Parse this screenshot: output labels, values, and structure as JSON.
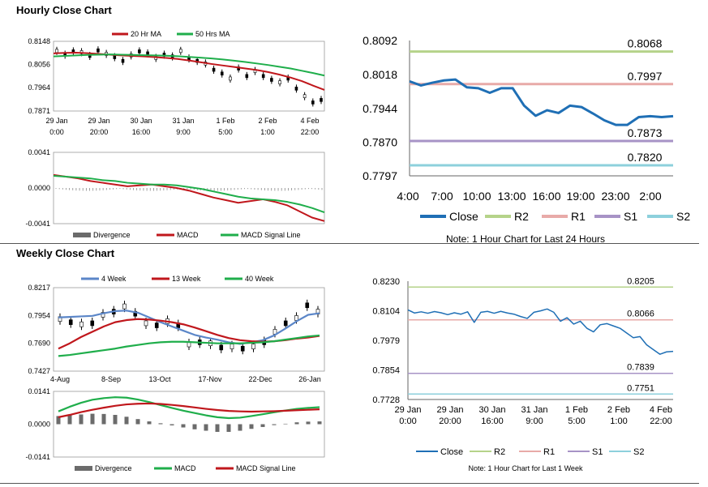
{
  "sections": {
    "hourly_title": "Hourly Close Chart",
    "weekly_title": "Weekly Close Chart"
  },
  "colors": {
    "close": "#1f6fb5",
    "r2": "#b5d38a",
    "r1": "#e8aaa8",
    "s1": "#a793c6",
    "s2": "#8dd0dc",
    "ma_red": "#c0171c",
    "ma_green": "#1fae4b",
    "ma_blue": "#5b86c8",
    "candle": "#000000",
    "divergence": "#6b6b6b"
  },
  "chart_data": [
    {
      "id": "hourly_price",
      "type": "line",
      "y_ticks": [
        "0.8148",
        "0.8056",
        "0.7964",
        "0.7871"
      ],
      "ylim": [
        0.7871,
        0.8148
      ],
      "x_ticks": [
        [
          "29 Jan",
          "0:00"
        ],
        [
          "29 Jan",
          "20:00"
        ],
        [
          "30 Jan",
          "16:00"
        ],
        [
          "31 Jan",
          "9:00"
        ],
        [
          "1 Feb",
          "5:00"
        ],
        [
          "2 Feb",
          "1:00"
        ],
        [
          "4 Feb",
          "22:00"
        ]
      ],
      "series": [
        {
          "name": "20 Hr MA",
          "color": "#c0171c",
          "values": [
            0.81,
            0.8102,
            0.8103,
            0.8101,
            0.8098,
            0.8095,
            0.8092,
            0.809,
            0.8088,
            0.8085,
            0.8082,
            0.8078,
            0.8072,
            0.8065,
            0.8058,
            0.8052,
            0.8046,
            0.804,
            0.8034,
            0.8026,
            0.8016,
            0.8004,
            0.799,
            0.7972,
            0.7955
          ]
        },
        {
          "name": "50 Hrs MA",
          "color": "#1fae4b",
          "values": [
            0.8088,
            0.809,
            0.8092,
            0.8094,
            0.8095,
            0.8096,
            0.8095,
            0.8094,
            0.8093,
            0.8092,
            0.8091,
            0.8089,
            0.8086,
            0.8083,
            0.808,
            0.8076,
            0.8071,
            0.8066,
            0.806,
            0.8054,
            0.8047,
            0.804,
            0.8031,
            0.8022,
            0.8012
          ]
        }
      ],
      "candles": [
        0.811,
        0.8095,
        0.8108,
        0.8105,
        0.809,
        0.8112,
        0.8098,
        0.8085,
        0.807,
        0.8092,
        0.8108,
        0.81,
        0.8082,
        0.8095,
        0.8088,
        0.811,
        0.808,
        0.807,
        0.806,
        0.8035,
        0.802,
        0.8,
        0.804,
        0.801,
        0.803,
        0.801,
        0.7995,
        0.7985,
        0.8,
        0.796,
        0.793,
        0.7905,
        0.7915
      ]
    },
    {
      "id": "hourly_macd",
      "type": "bar",
      "y_ticks": [
        "0.0041",
        "0.0000",
        "-0.0041"
      ],
      "ylim": [
        -0.0041,
        0.0041
      ],
      "series": [
        {
          "name": "Divergence",
          "color": "#6b6b6b"
        },
        {
          "name": "MACD",
          "color": "#c0171c",
          "values": [
            0.0015,
            0.0013,
            0.0011,
            0.0008,
            0.0006,
            0.0004,
            0.0002,
            0.0003,
            0.0004,
            0.0002,
            0.0,
            -0.0003,
            -0.0007,
            -0.0011,
            -0.0014,
            -0.0017,
            -0.0015,
            -0.0013,
            -0.0016,
            -0.002,
            -0.0027,
            -0.0034,
            -0.0038
          ]
        },
        {
          "name": "MACD Signal Line",
          "color": "#1fae4b",
          "values": [
            0.0014,
            0.0013,
            0.0012,
            0.0011,
            0.0009,
            0.0008,
            0.0006,
            0.0005,
            0.0004,
            0.0004,
            0.0003,
            0.0001,
            -0.0001,
            -0.0004,
            -0.0007,
            -0.001,
            -0.0012,
            -0.0013,
            -0.0014,
            -0.0016,
            -0.0019,
            -0.0023,
            -0.0028
          ]
        }
      ]
    },
    {
      "id": "hourly_24h",
      "type": "line",
      "y_ticks": [
        "0.8092",
        "0.8018",
        "0.7944",
        "0.7870",
        "0.7797"
      ],
      "ylim": [
        0.7797,
        0.8092
      ],
      "x_ticks": [
        "4:00",
        "7:00",
        "10:00",
        "13:00",
        "16:00",
        "19:00",
        "23:00",
        "2:00"
      ],
      "levels": [
        {
          "name": "R2",
          "value": 0.8068,
          "label": "0.8068",
          "color": "#b5d38a"
        },
        {
          "name": "R1",
          "value": 0.7997,
          "label": "0.7997",
          "color": "#e8aaa8"
        },
        {
          "name": "S1",
          "value": 0.7873,
          "label": "0.7873",
          "color": "#a793c6"
        },
        {
          "name": "S2",
          "value": 0.782,
          "label": "0.7820",
          "color": "#8dd0dc"
        }
      ],
      "series": [
        {
          "name": "Close",
          "color": "#1f6fb5",
          "values": [
            0.8003,
            0.7994,
            0.8,
            0.8005,
            0.8007,
            0.799,
            0.7988,
            0.7978,
            0.7988,
            0.7988,
            0.795,
            0.7928,
            0.794,
            0.7934,
            0.795,
            0.7947,
            0.7933,
            0.7918,
            0.7908,
            0.7908,
            0.7925,
            0.7927,
            0.7925,
            0.7927
          ]
        }
      ],
      "legend": [
        "Close",
        "R2",
        "R1",
        "S1",
        "S2"
      ],
      "note": "Note: 1 Hour Chart for Last 24 Hours"
    },
    {
      "id": "weekly_price",
      "type": "line",
      "y_ticks": [
        "0.8217",
        "0.7954",
        "0.7690",
        "0.7427"
      ],
      "ylim": [
        0.7427,
        0.8217
      ],
      "x_ticks": [
        "4-Aug",
        "8-Sep",
        "13-Oct",
        "17-Nov",
        "22-Dec",
        "26-Jan"
      ],
      "series": [
        {
          "name": "4 Week",
          "color": "#5b86c8",
          "values": [
            0.7935,
            0.794,
            0.7945,
            0.795,
            0.7975,
            0.7995,
            0.8,
            0.798,
            0.7935,
            0.789,
            0.785,
            0.781,
            0.777,
            0.7745,
            0.7725,
            0.77,
            0.7685,
            0.77,
            0.772,
            0.7765,
            0.783,
            0.79,
            0.796,
            0.7975
          ]
        },
        {
          "name": "13 Week",
          "color": "#c0171c",
          "values": [
            0.764,
            0.769,
            0.775,
            0.78,
            0.785,
            0.789,
            0.791,
            0.792,
            0.7915,
            0.7905,
            0.789,
            0.787,
            0.784,
            0.7805,
            0.777,
            0.774,
            0.772,
            0.771,
            0.7705,
            0.771,
            0.772,
            0.7735,
            0.7745,
            0.776
          ]
        },
        {
          "name": "40 Week",
          "color": "#1fae4b",
          "values": [
            0.757,
            0.758,
            0.7595,
            0.761,
            0.7625,
            0.764,
            0.766,
            0.7675,
            0.769,
            0.77,
            0.7705,
            0.7705,
            0.77,
            0.7695,
            0.769,
            0.769,
            0.769,
            0.7695,
            0.77,
            0.771,
            0.7725,
            0.774,
            0.7755,
            0.7765
          ]
        }
      ],
      "candles": [
        0.792,
        0.789,
        0.787,
        0.788,
        0.796,
        0.799,
        0.804,
        0.797,
        0.788,
        0.786,
        0.79,
        0.786,
        0.768,
        0.77,
        0.769,
        0.765,
        0.766,
        0.764,
        0.766,
        0.77,
        0.78,
        0.788,
        0.793,
        0.805,
        0.799
      ]
    },
    {
      "id": "weekly_macd",
      "type": "bar",
      "y_ticks": [
        "0.0141",
        "0.0000",
        "-0.0141"
      ],
      "ylim": [
        -0.0141,
        0.0141
      ],
      "series": [
        {
          "name": "Divergence",
          "color": "#6b6b6b",
          "values": [
            0.0035,
            0.004,
            0.0042,
            0.0045,
            0.0044,
            0.004,
            0.0032,
            0.0022,
            0.0012,
            0.0004,
            -0.0005,
            -0.0014,
            -0.0022,
            -0.0028,
            -0.0033,
            -0.0033,
            -0.0028,
            -0.002,
            -0.0012,
            -0.0004,
            0.0002,
            0.0008,
            0.0011,
            0.0012
          ]
        },
        {
          "name": "MACD",
          "color": "#1fae4b",
          "values": [
            0.0055,
            0.0075,
            0.0092,
            0.0105,
            0.0112,
            0.0116,
            0.0114,
            0.0106,
            0.0095,
            0.0082,
            0.007,
            0.0058,
            0.0048,
            0.0038,
            0.003,
            0.0026,
            0.0028,
            0.0035,
            0.0043,
            0.0051,
            0.0059,
            0.0066,
            0.007,
            0.0073
          ]
        },
        {
          "name": "MACD Signal Line",
          "color": "#c0171c",
          "values": [
            0.003,
            0.004,
            0.0052,
            0.0062,
            0.0071,
            0.0079,
            0.0085,
            0.0088,
            0.0089,
            0.0087,
            0.0083,
            0.0078,
            0.0072,
            0.0066,
            0.0061,
            0.0057,
            0.0055,
            0.0054,
            0.0055,
            0.0056,
            0.0058,
            0.006,
            0.0062,
            0.0064
          ]
        }
      ]
    },
    {
      "id": "weekly_1w",
      "type": "line",
      "y_ticks": [
        "0.8230",
        "0.8104",
        "0.7979",
        "0.7854",
        "0.7728"
      ],
      "ylim": [
        0.7728,
        0.823
      ],
      "x_ticks": [
        [
          "29 Jan",
          "0:00"
        ],
        [
          "29 Jan",
          "20:00"
        ],
        [
          "30 Jan",
          "16:00"
        ],
        [
          "31 Jan",
          "9:00"
        ],
        [
          "1 Feb",
          "5:00"
        ],
        [
          "2 Feb",
          "1:00"
        ],
        [
          "4 Feb",
          "22:00"
        ]
      ],
      "levels": [
        {
          "name": "R2",
          "value": 0.8205,
          "label": "0.8205",
          "color": "#b5d38a"
        },
        {
          "name": "R1",
          "value": 0.8066,
          "label": "0.8066",
          "color": "#e8aaa8"
        },
        {
          "name": "S1",
          "value": 0.7839,
          "label": "0.7839",
          "color": "#a793c6"
        },
        {
          "name": "S2",
          "value": 0.7751,
          "label": "0.7751",
          "color": "#8dd0dc"
        }
      ],
      "series": [
        {
          "name": "Close",
          "color": "#1f6fb5",
          "values": [
            0.8108,
            0.8095,
            0.81,
            0.8094,
            0.8101,
            0.8096,
            0.8088,
            0.8096,
            0.809,
            0.81,
            0.8055,
            0.8098,
            0.8102,
            0.8094,
            0.8102,
            0.8095,
            0.809,
            0.808,
            0.8072,
            0.8098,
            0.8104,
            0.8112,
            0.8098,
            0.806,
            0.8075,
            0.8048,
            0.806,
            0.803,
            0.8015,
            0.8045,
            0.805,
            0.804,
            0.803,
            0.801,
            0.799,
            0.7995,
            0.796,
            0.794,
            0.792,
            0.793,
            0.7932
          ]
        }
      ],
      "legend": [
        "Close",
        "R2",
        "R1",
        "S1",
        "S2"
      ],
      "note": "Note: 1 Hour Chart for Last 1 Week"
    }
  ],
  "legends": {
    "hourly_price": [
      "20 Hr MA",
      "50 Hrs MA"
    ],
    "hourly_macd": [
      "Divergence",
      "MACD",
      "MACD Signal Line"
    ],
    "weekly_price": [
      "4 Week",
      "13 Week",
      "40 Week"
    ],
    "weekly_macd": [
      "Divergence",
      "MACD",
      "MACD Signal Line"
    ]
  }
}
